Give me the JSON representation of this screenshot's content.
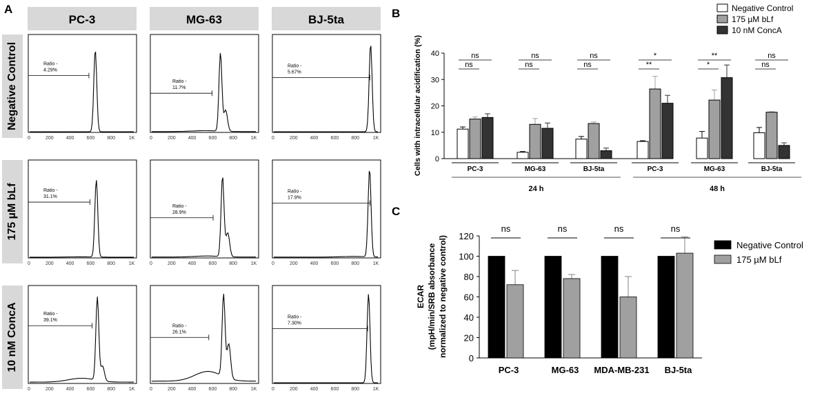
{
  "panel_labels": {
    "a": "A",
    "b": "B",
    "c": "C"
  },
  "histograms": {
    "columns": [
      "PC-3",
      "MG-63",
      "BJ-5ta"
    ],
    "rows": [
      "Negative Control",
      "175 µM bLf",
      "10 nM ConcA"
    ],
    "x_ticks": [
      "0",
      "200",
      "400",
      "600",
      "800",
      "1K"
    ],
    "ratio_label": "Ratio -",
    "ratios": [
      [
        "4.29%",
        "11.7%",
        "5.67%"
      ],
      [
        "31.1%",
        "28.9%",
        "17.9%"
      ],
      [
        "39.1%",
        "26.1%",
        "7.30%"
      ]
    ]
  },
  "chart_data": [
    {
      "type": "bar",
      "panel": "B",
      "ylabel": "Cells with intracellular acidification (%)",
      "ylim": [
        0,
        40
      ],
      "yticks": [
        "0",
        "10",
        "20",
        "30",
        "40"
      ],
      "groups": [
        {
          "time": "24 h",
          "lines": [
            "PC-3",
            "MG-63",
            "BJ-5ta"
          ]
        },
        {
          "time": "48 h",
          "lines": [
            "PC-3",
            "MG-63",
            "BJ-5ta"
          ]
        }
      ],
      "categories": [
        "PC-3 24 h",
        "MG-63 24 h",
        "BJ-5ta 24 h",
        "PC-3 48 h",
        "MG-63 48 h",
        "BJ-5ta 48 h"
      ],
      "series": [
        {
          "name": "Negative Control",
          "color": "#ffffff",
          "values": [
            11.2,
            2.4,
            7.4,
            6.5,
            7.8,
            9.8
          ],
          "errors": [
            0.8,
            0.3,
            1.0,
            0.3,
            2.5,
            2.0
          ]
        },
        {
          "name": "175 µM bLf",
          "color": "#a0a0a0",
          "values": [
            15.0,
            13.0,
            13.3,
            26.4,
            22.2,
            17.6
          ],
          "errors": [
            0.8,
            2.2,
            0.6,
            4.8,
            3.8,
            0.2
          ]
        },
        {
          "name": "10 nM ConcA",
          "color": "#333333",
          "values": [
            15.6,
            11.5,
            3.0,
            21.0,
            30.7,
            5.0
          ],
          "errors": [
            1.4,
            2.0,
            1.0,
            3.0,
            4.8,
            1.0
          ]
        }
      ],
      "significance": [
        {
          "top": "ns",
          "bottom": "ns"
        },
        {
          "top": "ns",
          "bottom": "ns"
        },
        {
          "top": "ns",
          "bottom": "ns"
        },
        {
          "top": "*",
          "bottom": "**"
        },
        {
          "top": "**",
          "bottom": "*"
        },
        {
          "top": "ns",
          "bottom": "ns"
        }
      ]
    },
    {
      "type": "bar",
      "panel": "C",
      "ylabel_lines": [
        "ECAR",
        "(mpH/min/SRB absorbance",
        "normalized to negative control)"
      ],
      "ylim": [
        0,
        120
      ],
      "yticks": [
        "0",
        "20",
        "40",
        "60",
        "80",
        "100",
        "120"
      ],
      "categories": [
        "PC-3",
        "MG-63",
        "MDA-MB-231",
        "BJ-5ta"
      ],
      "series": [
        {
          "name": "Negative Control",
          "color": "#000000",
          "values": [
            100,
            100,
            100,
            100
          ],
          "errors": [
            0,
            0,
            0,
            0
          ]
        },
        {
          "name": "175 µM bLf",
          "color": "#a0a0a0",
          "values": [
            72,
            78,
            60,
            103
          ],
          "errors": [
            14,
            4,
            20,
            16
          ]
        }
      ],
      "significance": [
        "ns",
        "ns",
        "ns",
        "ns"
      ]
    }
  ]
}
